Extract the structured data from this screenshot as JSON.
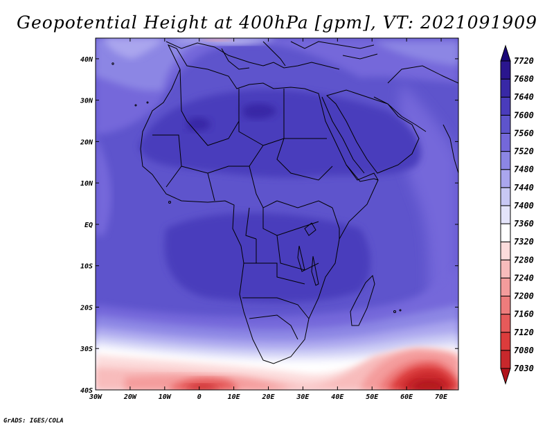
{
  "title": "Geopotential Height at 400hPa [gpm], VT: 2021091909",
  "credit": "GrADS: IGES/COLA",
  "map": {
    "lon_range": [
      -30,
      75
    ],
    "lat_range": [
      -40,
      45
    ],
    "lon_ticks": [
      {
        "value": -30,
        "label": "30W"
      },
      {
        "value": -20,
        "label": "20W"
      },
      {
        "value": -10,
        "label": "10W"
      },
      {
        "value": 0,
        "label": "0"
      },
      {
        "value": 10,
        "label": "10E"
      },
      {
        "value": 20,
        "label": "20E"
      },
      {
        "value": 30,
        "label": "30E"
      },
      {
        "value": 40,
        "label": "40E"
      },
      {
        "value": 50,
        "label": "50E"
      },
      {
        "value": 60,
        "label": "60E"
      },
      {
        "value": 70,
        "label": "70E"
      }
    ],
    "lat_ticks": [
      {
        "value": 40,
        "label": "40N"
      },
      {
        "value": 30,
        "label": "30N"
      },
      {
        "value": 20,
        "label": "20N"
      },
      {
        "value": 10,
        "label": "10N"
      },
      {
        "value": 0,
        "label": "EQ"
      },
      {
        "value": -10,
        "label": "10S"
      },
      {
        "value": -20,
        "label": "20S"
      },
      {
        "value": -30,
        "label": "30S"
      },
      {
        "value": -40,
        "label": "40S"
      }
    ]
  },
  "colorbar": {
    "levels": [
      "7030",
      "7080",
      "7120",
      "7160",
      "7200",
      "7240",
      "7280",
      "7320",
      "7360",
      "7400",
      "7440",
      "7480",
      "7520",
      "7560",
      "7600",
      "7640",
      "7680",
      "7720"
    ],
    "colors": [
      "#b0141c",
      "#c8282c",
      "#dc3c3c",
      "#e65a5a",
      "#ee7c7c",
      "#f49c9c",
      "#f8bcbc",
      "#fcdcdc",
      "#ffffff",
      "#e4e4fa",
      "#c8c8f4",
      "#aaa6ee",
      "#8c86e4",
      "#7468da",
      "#5e54cc",
      "#4a3cbc",
      "#3828a6",
      "#2a168e",
      "#1a0878"
    ]
  },
  "chart_data": {
    "type": "heatmap",
    "title": "Geopotential Height at 400hPa [gpm], VT: 2021091909",
    "xlabel": "",
    "ylabel": "",
    "xlim": [
      -30,
      75
    ],
    "ylim": [
      -40,
      45
    ],
    "unit": "gpm",
    "levels": [
      7030,
      7080,
      7120,
      7160,
      7200,
      7240,
      7280,
      7320,
      7360,
      7400,
      7440,
      7480,
      7520,
      7560,
      7600,
      7640,
      7680,
      7720
    ],
    "features": [
      {
        "lon": 0,
        "lat": -40,
        "value": 7080
      },
      {
        "lon": 64,
        "lat": -37,
        "value": 7030
      },
      {
        "lon": 20,
        "lat": -33,
        "value": 7380
      },
      {
        "lon": 17,
        "lat": 26,
        "value": 7600
      },
      {
        "lon": -1,
        "lat": 23,
        "value": 7600
      },
      {
        "lon": 20,
        "lat": 43,
        "value": 7400
      },
      {
        "lon": 20,
        "lat": -4,
        "value": 7560
      }
    ]
  }
}
